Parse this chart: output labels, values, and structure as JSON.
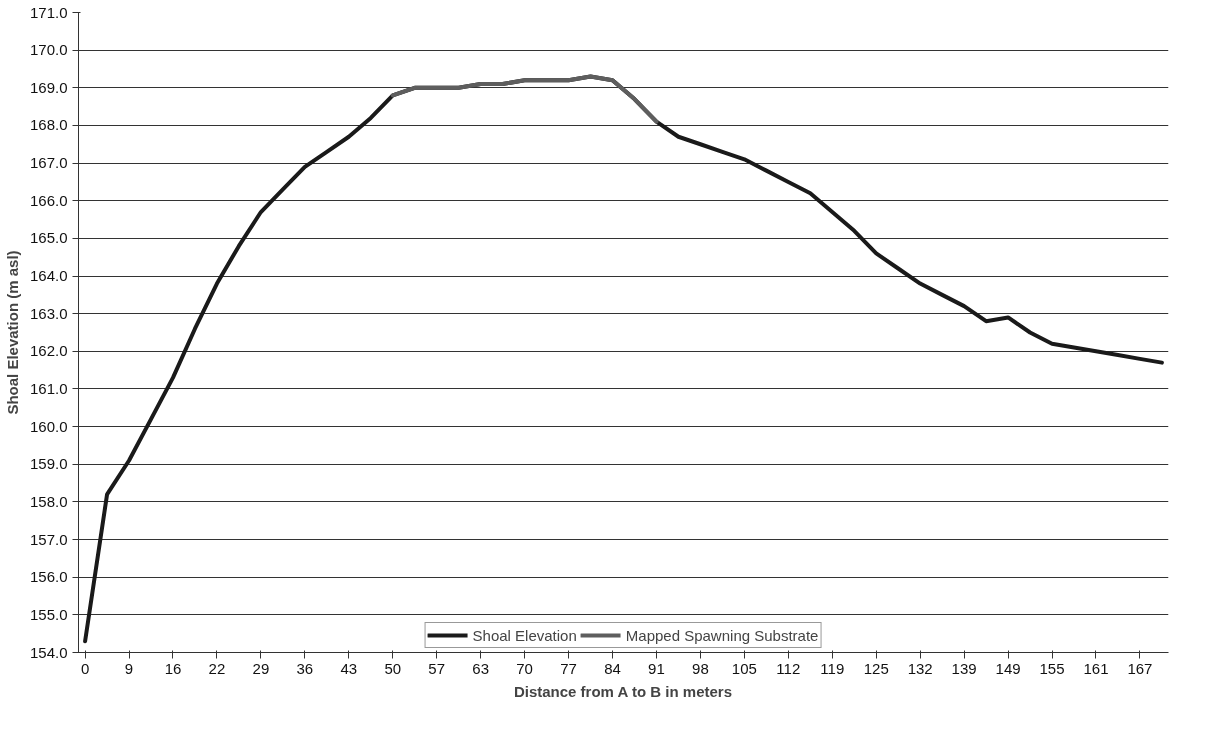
{
  "chart_data": {
    "type": "line",
    "xlabel": "Distance from A to B in meters",
    "ylabel": "Shoal Elevation (m asl)",
    "categories": [
      "0",
      null,
      "9",
      null,
      "16",
      null,
      "22",
      null,
      "29",
      null,
      "36",
      null,
      "43",
      null,
      "50",
      null,
      "57",
      null,
      "63",
      null,
      "70",
      null,
      "77",
      null,
      "84",
      null,
      "91",
      null,
      "98",
      null,
      "105",
      null,
      "112",
      null,
      "119",
      null,
      "125",
      null,
      "132",
      null,
      "139",
      null,
      "149",
      null,
      "155",
      null,
      "161",
      null,
      "167",
      null
    ],
    "series": [
      {
        "name": "Shoal Elevation",
        "color": "#1a1a1a",
        "values": [
          154.3,
          158.2,
          159.1,
          160.2,
          161.3,
          162.6,
          163.8,
          164.8,
          165.7,
          166.3,
          166.9,
          167.3,
          167.7,
          168.2,
          168.8,
          169.0,
          169.0,
          169.0,
          169.1,
          169.1,
          169.2,
          169.2,
          169.2,
          169.3,
          169.2,
          168.7,
          168.1,
          167.7,
          167.5,
          167.3,
          167.1,
          166.8,
          166.5,
          166.2,
          165.7,
          165.2,
          164.6,
          164.2,
          163.8,
          163.5,
          163.2,
          162.8,
          162.9,
          162.5,
          162.2,
          162.1,
          162.0,
          161.9,
          161.8,
          161.7
        ]
      },
      {
        "name": "Mapped Spawning Substrate",
        "color": "#5e5e5e",
        "values": [
          null,
          null,
          null,
          null,
          null,
          null,
          null,
          null,
          null,
          null,
          null,
          null,
          null,
          null,
          168.8,
          169.0,
          169.0,
          169.0,
          169.1,
          169.1,
          169.2,
          169.2,
          169.2,
          169.3,
          169.2,
          168.7,
          168.1,
          null,
          null,
          null,
          null,
          null,
          null,
          null,
          null,
          null,
          null,
          null,
          null,
          null,
          null,
          null,
          null,
          null,
          null,
          null,
          null,
          null,
          null,
          null
        ]
      }
    ],
    "ylim": [
      154,
      171
    ],
    "yticks": [
      {
        "value": 154,
        "label": "154.0"
      },
      {
        "value": 155,
        "label": "155.0"
      },
      {
        "value": 156,
        "label": "156.0"
      },
      {
        "value": 157,
        "label": "157.0"
      },
      {
        "value": 158,
        "label": "158.0"
      },
      {
        "value": 159,
        "label": "159.0"
      },
      {
        "value": 160,
        "label": "160.0"
      },
      {
        "value": 161,
        "label": "161.0"
      },
      {
        "value": 162,
        "label": "162.0"
      },
      {
        "value": 163,
        "label": "163.0"
      },
      {
        "value": 164,
        "label": "164.0"
      },
      {
        "value": 165,
        "label": "165.0"
      },
      {
        "value": 166,
        "label": "166.0"
      },
      {
        "value": 167,
        "label": "167.0"
      },
      {
        "value": 168,
        "label": "168.0"
      },
      {
        "value": 169,
        "label": "169.0"
      },
      {
        "value": 170,
        "label": "170.0"
      },
      {
        "value": 171,
        "label": "171.0"
      }
    ],
    "grid": "y",
    "legend": "bottom",
    "marker": "none",
    "line_style": "solid"
  }
}
